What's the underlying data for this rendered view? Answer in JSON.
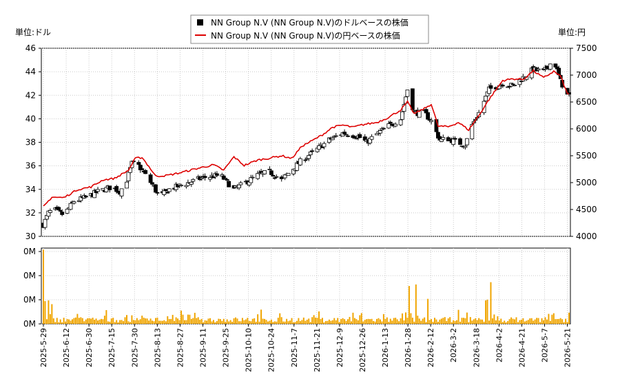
{
  "chart_data": {
    "type": "candlestick",
    "legend": {
      "placement": "top-center",
      "entries": [
        {
          "label": "NN Group N.V (NN Group N.V)のドルベースの株価",
          "color": "#000000",
          "marker": "square"
        },
        {
          "label": "NN Group N.V (NN Group N.V)の円ベースの株価",
          "color": "#dd0000",
          "marker": "line"
        }
      ]
    },
    "left_unit_label": "単位:ドル",
    "right_unit_label": "単位:円",
    "price_axis_left": {
      "min": 30,
      "max": 46,
      "ticks": [
        "30",
        "32",
        "34",
        "36",
        "38",
        "40",
        "42",
        "44",
        "46"
      ]
    },
    "price_axis_right": {
      "min": 4000,
      "max": 7500,
      "ticks": [
        "4000",
        "4500",
        "5000",
        "5500",
        "6000",
        "6500",
        "7000",
        "7500"
      ]
    },
    "volume_axis": {
      "ticks": [
        "0M",
        "0M",
        "0M",
        "0M"
      ]
    },
    "x_tick_labels": [
      "2025-5-29",
      "2025-6-12",
      "2025-6-30",
      "2025-7-15",
      "2025-7-30",
      "2025-8-13",
      "2025-8-27",
      "2025-9-11",
      "2025-9-25",
      "2025-10-10",
      "2025-10-24",
      "2025-11-7",
      "2025-11-21",
      "2025-12-9",
      "2025-12-26",
      "2026-1-13",
      "2026-1-28",
      "2026-2-12",
      "2026-3-2",
      "2026-3-18",
      "2026-4-2",
      "2026-4-21",
      "2026-5-7",
      "2026-5-21"
    ],
    "usd_close_keypoints": [
      [
        0,
        31.0
      ],
      [
        3,
        32.0
      ],
      [
        6,
        32.3
      ],
      [
        12,
        31.8
      ],
      [
        18,
        33.0
      ],
      [
        25,
        33.3
      ],
      [
        32,
        33.8
      ],
      [
        40,
        34.2
      ],
      [
        45,
        33.8
      ],
      [
        49,
        34.8
      ],
      [
        52,
        36.2
      ],
      [
        56,
        36.0
      ],
      [
        60,
        35.2
      ],
      [
        65,
        34.2
      ],
      [
        68,
        33.3
      ],
      [
        74,
        34.0
      ],
      [
        84,
        34.5
      ],
      [
        94,
        35.0
      ],
      [
        104,
        35.2
      ],
      [
        112,
        34.0
      ],
      [
        118,
        34.5
      ],
      [
        126,
        35.2
      ],
      [
        133,
        35.5
      ],
      [
        140,
        34.8
      ],
      [
        145,
        35.5
      ],
      [
        152,
        36.5
      ],
      [
        160,
        37.3
      ],
      [
        168,
        38.2
      ],
      [
        176,
        38.8
      ],
      [
        185,
        38.5
      ],
      [
        190,
        38.0
      ],
      [
        196,
        38.7
      ],
      [
        204,
        39.5
      ],
      [
        210,
        40.0
      ],
      [
        214,
        42.5
      ],
      [
        218,
        40.5
      ],
      [
        224,
        40.5
      ],
      [
        228,
        39.8
      ],
      [
        233,
        38.2
      ],
      [
        238,
        38.3
      ],
      [
        243,
        38.0
      ],
      [
        248,
        37.8
      ],
      [
        252,
        39.5
      ],
      [
        256,
        40.5
      ],
      [
        262,
        42.5
      ],
      [
        270,
        43.0
      ],
      [
        276,
        42.8
      ],
      [
        282,
        43.5
      ],
      [
        288,
        44.2
      ],
      [
        294,
        44.0
      ],
      [
        300,
        45.0
      ],
      [
        304,
        43.2
      ],
      [
        308,
        42.0
      ]
    ],
    "jpy_close_keypoints": [
      [
        0,
        4550
      ],
      [
        5,
        4730
      ],
      [
        12,
        4720
      ],
      [
        20,
        4870
      ],
      [
        28,
        4920
      ],
      [
        35,
        5050
      ],
      [
        42,
        5080
      ],
      [
        50,
        5230
      ],
      [
        54,
        5450
      ],
      [
        58,
        5470
      ],
      [
        62,
        5300
      ],
      [
        66,
        5120
      ],
      [
        72,
        5130
      ],
      [
        80,
        5180
      ],
      [
        90,
        5260
      ],
      [
        100,
        5330
      ],
      [
        106,
        5230
      ],
      [
        112,
        5480
      ],
      [
        118,
        5320
      ],
      [
        126,
        5420
      ],
      [
        132,
        5450
      ],
      [
        140,
        5500
      ],
      [
        146,
        5450
      ],
      [
        152,
        5680
      ],
      [
        158,
        5780
      ],
      [
        164,
        5890
      ],
      [
        170,
        6030
      ],
      [
        176,
        6070
      ],
      [
        182,
        6030
      ],
      [
        188,
        6080
      ],
      [
        196,
        6120
      ],
      [
        202,
        6200
      ],
      [
        210,
        6350
      ],
      [
        214,
        6500
      ],
      [
        218,
        6280
      ],
      [
        224,
        6380
      ],
      [
        228,
        6460
      ],
      [
        232,
        6050
      ],
      [
        238,
        6040
      ],
      [
        244,
        6120
      ],
      [
        250,
        5980
      ],
      [
        256,
        6250
      ],
      [
        262,
        6550
      ],
      [
        270,
        6900
      ],
      [
        276,
        6930
      ],
      [
        282,
        6920
      ],
      [
        288,
        7080
      ],
      [
        294,
        6950
      ],
      [
        300,
        7070
      ],
      [
        304,
        6980
      ],
      [
        308,
        6650
      ]
    ],
    "volume_spikes": {
      "0": 0.98,
      "1": 0.3,
      "3": 0.31,
      "5": 0.26,
      "215": 0.5,
      "219": 0.52,
      "226": 0.33,
      "263": 0.55,
      "260": 0.31,
      "261": 0.32
    }
  }
}
